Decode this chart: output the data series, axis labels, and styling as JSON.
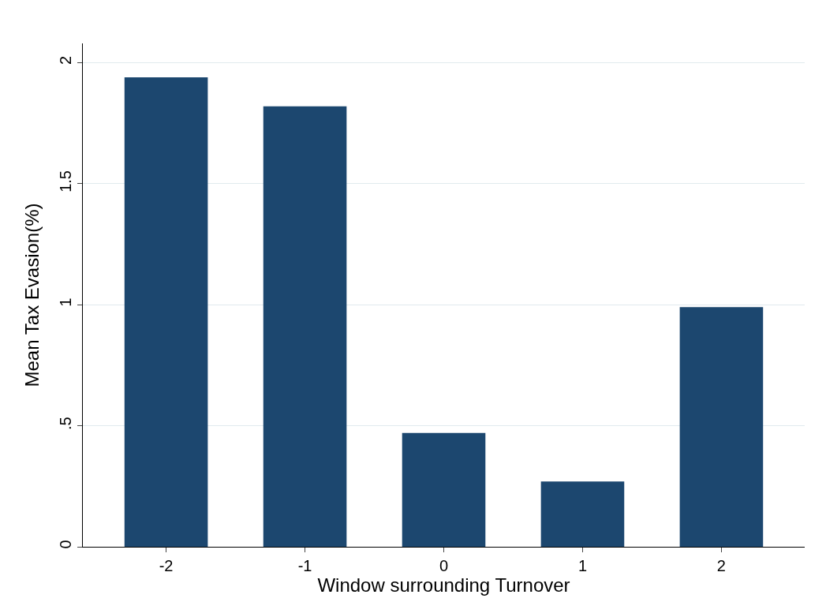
{
  "chart_data": {
    "type": "bar",
    "xlabel": "Window surrounding Turnover",
    "ylabel": "Mean Tax Evasion(%)",
    "categories": [
      "-2",
      "-1",
      "0",
      "1",
      "2"
    ],
    "values": [
      1.94,
      1.82,
      0.47,
      0.27,
      0.99
    ],
    "color": "#1c476f",
    "ylim": [
      0,
      2.08
    ],
    "yticks": [
      0,
      {
        "value": 0.5,
        "label": ".5"
      },
      1,
      1.5,
      2
    ],
    "grid": "y"
  }
}
